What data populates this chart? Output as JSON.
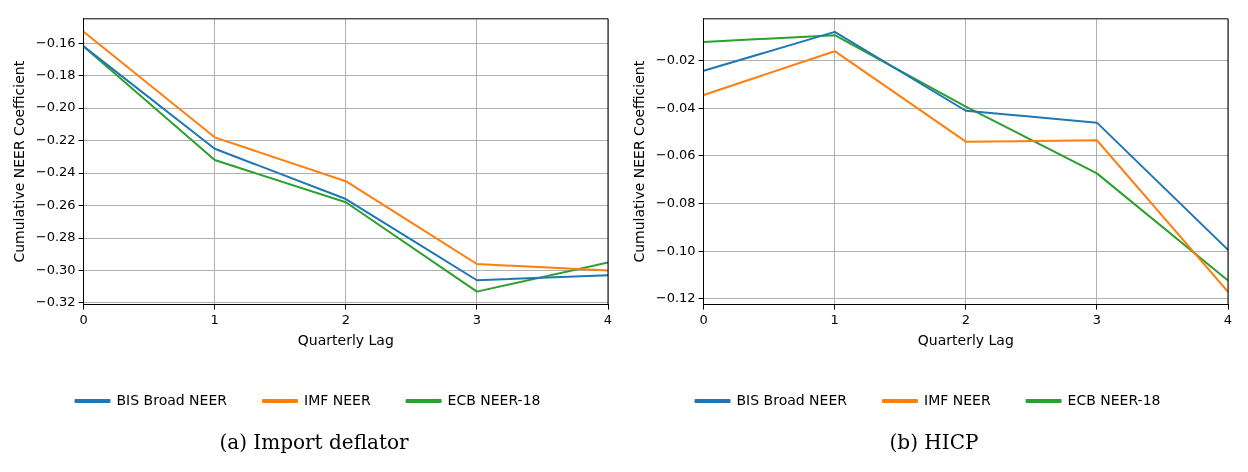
{
  "chart_data": [
    {
      "type": "line",
      "title": "(a) Import deflator",
      "xlabel": "Quarterly Lag",
      "ylabel": "Cumulative NEER Coefficient",
      "x": [
        0,
        1,
        2,
        3,
        4
      ],
      "xlim": [
        0,
        4
      ],
      "xticks": [
        0,
        1,
        2,
        3,
        4
      ],
      "ylim": [
        -0.321,
        -0.145
      ],
      "yticks": [
        {
          "value": -0.32,
          "label": "−0.32"
        },
        {
          "value": -0.3,
          "label": "−0.30"
        },
        {
          "value": -0.28,
          "label": "−0.28"
        },
        {
          "value": -0.26,
          "label": "−0.26"
        },
        {
          "value": -0.24,
          "label": "−0.24"
        },
        {
          "value": -0.22,
          "label": "−0.22"
        },
        {
          "value": -0.2,
          "label": "−0.20"
        },
        {
          "value": -0.18,
          "label": "−0.18"
        },
        {
          "value": -0.16,
          "label": "−0.16"
        }
      ],
      "grid": true,
      "legend": "bottom",
      "marker": "none",
      "line_style": "solid",
      "series": [
        {
          "name": "BIS Broad NEER",
          "color": "#1f77b4",
          "values": [
            -0.162,
            -0.225,
            -0.256,
            -0.306,
            -0.303
          ]
        },
        {
          "name": "IMF NEER",
          "color": "#ff7f0e",
          "values": [
            -0.153,
            -0.218,
            -0.245,
            -0.296,
            -0.3
          ]
        },
        {
          "name": "ECB NEER-18",
          "color": "#2ca02c",
          "values": [
            -0.162,
            -0.232,
            -0.258,
            -0.313,
            -0.295
          ]
        }
      ]
    },
    {
      "type": "line",
      "title": "(b) HICP",
      "xlabel": "Quarterly Lag",
      "ylabel": "Cumulative NEER Coefficient",
      "x": [
        0,
        1,
        2,
        3,
        4
      ],
      "xlim": [
        0,
        4
      ],
      "xticks": [
        0,
        1,
        2,
        3,
        4
      ],
      "ylim": [
        -0.1224,
        -0.0024
      ],
      "yticks": [
        {
          "value": -0.12,
          "label": "−0.12"
        },
        {
          "value": -0.1,
          "label": "−0.10"
        },
        {
          "value": -0.08,
          "label": "−0.08"
        },
        {
          "value": -0.06,
          "label": "−0.06"
        },
        {
          "value": -0.04,
          "label": "−0.04"
        },
        {
          "value": -0.02,
          "label": "−0.02"
        }
      ],
      "grid": true,
      "legend": "bottom",
      "marker": "none",
      "line_style": "solid",
      "series": [
        {
          "name": "BIS Broad NEER",
          "color": "#1f77b4",
          "values": [
            -0.0242,
            -0.0079,
            -0.041,
            -0.046,
            -0.0994
          ]
        },
        {
          "name": "IMF NEER",
          "color": "#ff7f0e",
          "values": [
            -0.0344,
            -0.016,
            -0.054,
            -0.0534,
            -0.117
          ]
        },
        {
          "name": "ECB NEER-18",
          "color": "#2ca02c",
          "values": [
            -0.0121,
            -0.0093,
            -0.0393,
            -0.0673,
            -0.1123
          ]
        }
      ]
    }
  ]
}
